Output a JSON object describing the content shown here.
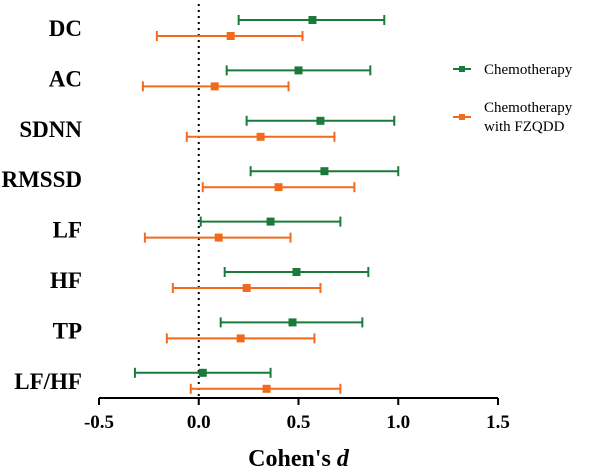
{
  "chart_data": {
    "type": "forest",
    "xlabel_prefix": "Cohen's ",
    "xlabel_var": "d",
    "xlim": [
      -0.5,
      1.5
    ],
    "xticks": [
      "-0.5",
      "0.0",
      "0.5",
      "1.0",
      "1.5"
    ],
    "reference_line_x": 0.0,
    "legend_position": "right",
    "categories": [
      "DC",
      "AC",
      "SDNN",
      "RMSSD",
      "LF",
      "HF",
      "TP",
      "LF/HF"
    ],
    "series": [
      {
        "name": "Chemotherapy",
        "color": "#1a7a3a",
        "marker": "square",
        "estimates": [
          0.57,
          0.5,
          0.61,
          0.63,
          0.36,
          0.49,
          0.47,
          0.02
        ],
        "lower": [
          0.2,
          0.14,
          0.24,
          0.26,
          0.01,
          0.13,
          0.11,
          -0.32
        ],
        "upper": [
          0.93,
          0.86,
          0.98,
          1.0,
          0.71,
          0.85,
          0.82,
          0.36
        ]
      },
      {
        "name": "Chemotherapy\nwith FZQDD",
        "color": "#f26b1d",
        "marker": "square",
        "estimates": [
          0.16,
          0.08,
          0.31,
          0.4,
          0.1,
          0.24,
          0.21,
          0.34
        ],
        "lower": [
          -0.21,
          -0.28,
          -0.06,
          0.02,
          -0.27,
          -0.13,
          -0.16,
          -0.04
        ],
        "upper": [
          0.52,
          0.45,
          0.68,
          0.78,
          0.46,
          0.61,
          0.58,
          0.71
        ]
      }
    ]
  }
}
